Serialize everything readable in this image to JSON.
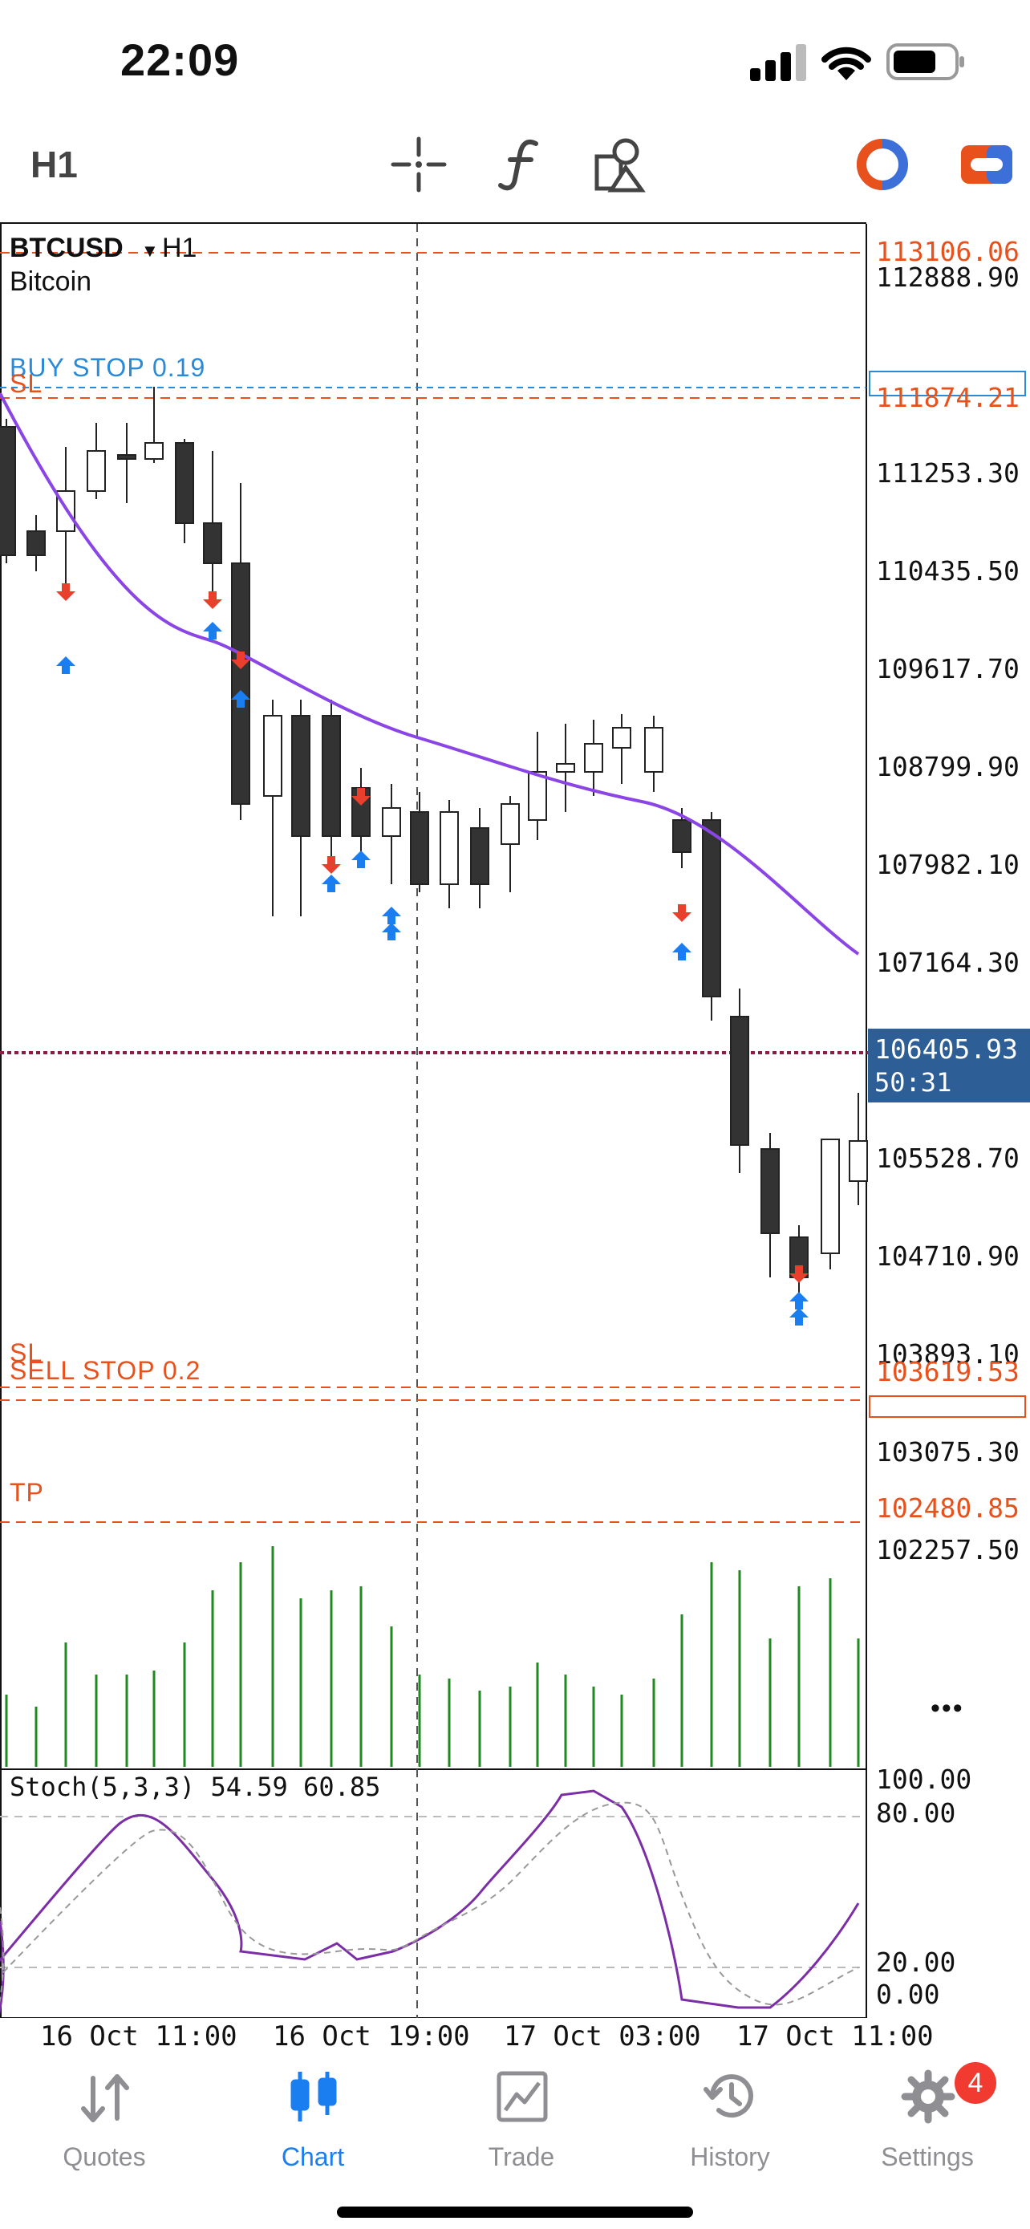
{
  "status_bar": {
    "time": "22:09"
  },
  "toolbar": {
    "timeframe": "H1",
    "icons": [
      "crosshair-icon",
      "indicator-f-icon",
      "objects-icon",
      "account-circle-icon",
      "trade-icon"
    ]
  },
  "chart": {
    "symbol": "BTCUSD",
    "timeframe": "H1",
    "description": "Bitcoin",
    "price_labels": [
      "112888.90",
      "111253.30",
      "110435.50",
      "109617.70",
      "108799.90",
      "107982.10",
      "107164.30",
      "105528.70",
      "104710.90",
      "103893.10",
      "103075.30",
      "102257.50"
    ],
    "order_lines": {
      "top_red": "113106.06",
      "buy_stop_label": "BUY STOP 0.19",
      "sl_top": "SL",
      "sl_top_price": "111874.21",
      "bid_price": "106405.93",
      "bar_timer": "50:31",
      "sl_bottom": "SL",
      "sell_stop_label": "SELL STOP 0.2",
      "sell_stop_price": "103619.53",
      "tp": "TP",
      "tp_price": "102480.85"
    },
    "stochastic": {
      "title": "Stoch(5,3,3) 54.59 60.85",
      "levels": [
        "100.00",
        "80.00",
        "20.00",
        "0.00"
      ]
    },
    "time_labels": [
      "16 Oct 11:00",
      "16 Oct 19:00",
      "17 Oct 03:00",
      "17 Oct 11:00"
    ],
    "more_label": "•••"
  },
  "colors": {
    "accent": "#1b7ef0",
    "order_red": "#e8501c",
    "ma_line": "#8b45e6",
    "volume": "#1f8a1f",
    "bid_box": "#2d5f96",
    "stoch_main": "#7b2ea6"
  },
  "tabs": [
    {
      "label": "Quotes",
      "icon": "quotes-icon"
    },
    {
      "label": "Chart",
      "icon": "chart-icon",
      "active": true
    },
    {
      "label": "Trade",
      "icon": "trade-chart-icon"
    },
    {
      "label": "History",
      "icon": "history-icon"
    },
    {
      "label": "Settings",
      "icon": "settings-icon",
      "badge": "4"
    }
  ]
}
